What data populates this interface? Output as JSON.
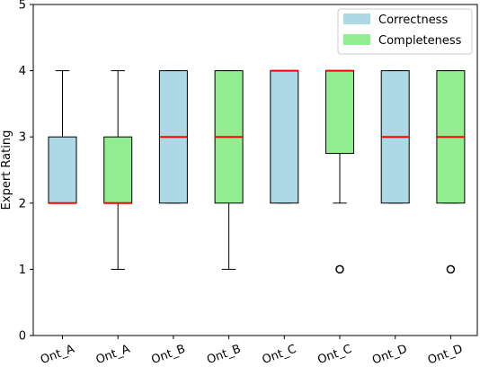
{
  "chart_data": {
    "type": "box",
    "ylabel": "Expert Rating",
    "xlabel": "",
    "ylim": [
      0,
      5
    ],
    "yticks": [
      0,
      1,
      2,
      3,
      4,
      5
    ],
    "grid": false,
    "legend_position": "top-right",
    "legend": [
      {
        "label": "Correctness",
        "color": "#add8e6"
      },
      {
        "label": "Completeness",
        "color": "#90ee90"
      }
    ],
    "median_color": "#ff0000",
    "boxes": [
      {
        "label": "Ont_A",
        "series": "Correctness",
        "color": "#add8e6",
        "whisker_low": 2,
        "q1": 2,
        "median": 2,
        "q3": 3,
        "whisker_high": 4,
        "outliers": []
      },
      {
        "label": "Ont_A",
        "series": "Completeness",
        "color": "#90ee90",
        "whisker_low": 1,
        "q1": 2,
        "median": 2,
        "q3": 3,
        "whisker_high": 4,
        "outliers": []
      },
      {
        "label": "Ont_B",
        "series": "Correctness",
        "color": "#add8e6",
        "whisker_low": 2,
        "q1": 2,
        "median": 3,
        "q3": 4,
        "whisker_high": 4,
        "outliers": []
      },
      {
        "label": "Ont_B",
        "series": "Completeness",
        "color": "#90ee90",
        "whisker_low": 1,
        "q1": 2,
        "median": 3,
        "q3": 4,
        "whisker_high": 4,
        "outliers": []
      },
      {
        "label": "Ont_C",
        "series": "Correctness",
        "color": "#add8e6",
        "whisker_low": 2,
        "q1": 2,
        "median": 4,
        "q3": 4,
        "whisker_high": 4,
        "outliers": []
      },
      {
        "label": "Ont_C",
        "series": "Completeness",
        "color": "#90ee90",
        "whisker_low": 2,
        "q1": 2.75,
        "median": 4,
        "q3": 4,
        "whisker_high": 4,
        "outliers": [
          1
        ]
      },
      {
        "label": "Ont_D",
        "series": "Correctness",
        "color": "#add8e6",
        "whisker_low": 2,
        "q1": 2,
        "median": 3,
        "q3": 4,
        "whisker_high": 4,
        "outliers": []
      },
      {
        "label": "Ont_D",
        "series": "Completeness",
        "color": "#90ee90",
        "whisker_low": 2,
        "q1": 2,
        "median": 3,
        "q3": 4,
        "whisker_high": 4,
        "outliers": [
          1
        ]
      }
    ]
  }
}
